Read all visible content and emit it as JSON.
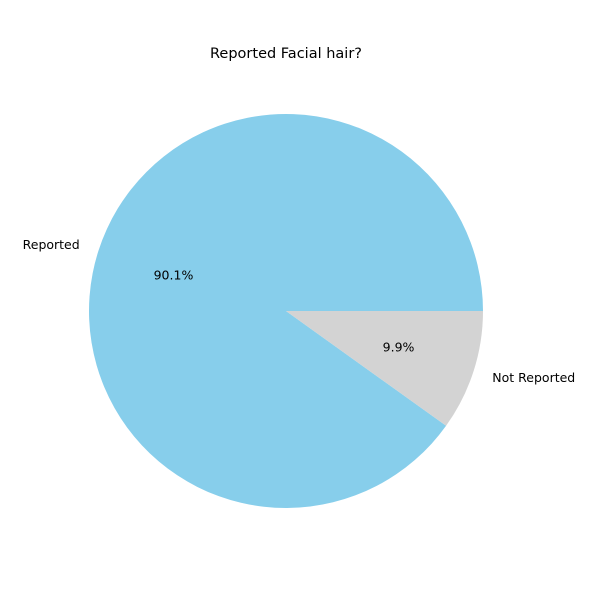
{
  "chart_data": {
    "type": "pie",
    "title": "Reported Facial hair?",
    "slices": [
      {
        "label": "Reported",
        "value": 90.1,
        "pct_label": "90.1%",
        "color": "#87CEEB"
      },
      {
        "label": "Not Reported",
        "value": 9.9,
        "pct_label": "9.9%",
        "color": "#D3D3D3"
      }
    ],
    "start_angle_deg": 0,
    "direction": "counterclockwise"
  }
}
